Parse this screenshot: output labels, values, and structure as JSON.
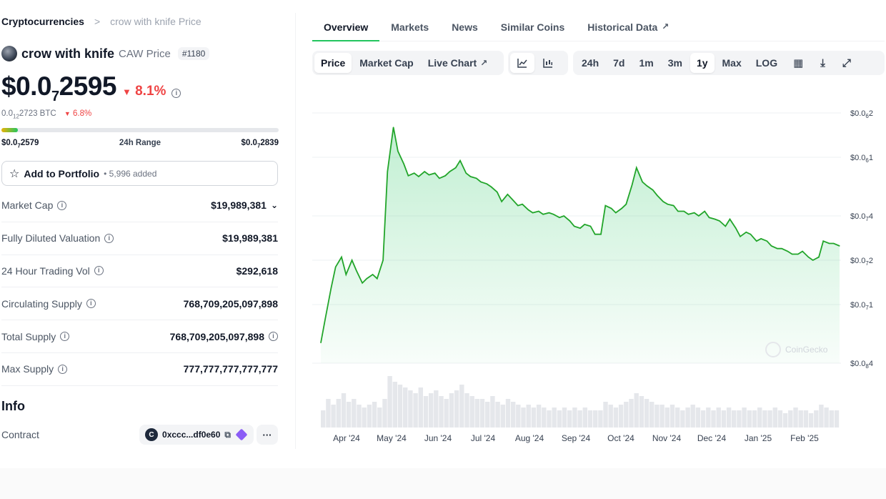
{
  "breadcrumb": {
    "root": "Cryptocurrencies",
    "separator": ">",
    "current": "crow with knife Price"
  },
  "coin": {
    "name": "crow with knife",
    "symbol_label": "CAW Price",
    "rank": "#1180",
    "price_prefix": "$0.0",
    "price_zeros": "7",
    "price_digits": "2595",
    "change_24h": "8.1%",
    "btc_prefix": "0.0",
    "btc_zeros": "12",
    "btc_digits": "2723 BTC",
    "btc_change": "6.8%"
  },
  "range": {
    "low_prefix": "$0.0",
    "low_zeros": "7",
    "low_digits": "2579",
    "label": "24h Range",
    "high_prefix": "$0.0",
    "high_zeros": "7",
    "high_digits": "2839",
    "position_fraction": 0.06
  },
  "portfolio": {
    "label": "Add to Portfolio",
    "count": "• 5,996 added"
  },
  "stats": [
    {
      "label": "Market Cap",
      "value": "$19,989,381",
      "expand": true,
      "value_info": false
    },
    {
      "label": "Fully Diluted Valuation",
      "value": "$19,989,381",
      "expand": false,
      "value_info": false
    },
    {
      "label": "24 Hour Trading Vol",
      "value": "$292,618",
      "expand": false,
      "value_info": false
    },
    {
      "label": "Circulating Supply",
      "value": "768,709,205,097,898",
      "expand": false,
      "value_info": false
    },
    {
      "label": "Total Supply",
      "value": "768,709,205,097,898",
      "expand": false,
      "value_info": true
    },
    {
      "label": "Max Supply",
      "value": "777,777,777,777,777",
      "expand": false,
      "value_info": false
    }
  ],
  "info": {
    "heading": "Info",
    "contract_label": "Contract",
    "contract_address": "0xccc...df0e60",
    "contract_logo": "C",
    "more": "···"
  },
  "tabs": [
    {
      "label": "Overview",
      "active": true,
      "external": false
    },
    {
      "label": "Markets",
      "active": false,
      "external": false
    },
    {
      "label": "News",
      "active": false,
      "external": false
    },
    {
      "label": "Similar Coins",
      "active": false,
      "external": false
    },
    {
      "label": "Historical Data",
      "active": false,
      "external": true
    }
  ],
  "toolbar": {
    "chart_types": [
      {
        "label": "Price",
        "active": true,
        "external": false
      },
      {
        "label": "Market Cap",
        "active": false,
        "external": false
      },
      {
        "label": "Live Chart",
        "active": false,
        "external": true
      }
    ],
    "view_icons": [
      "line-chart-icon",
      "candlestick-icon"
    ],
    "ranges": [
      {
        "label": "24h",
        "active": false
      },
      {
        "label": "7d",
        "active": false
      },
      {
        "label": "1m",
        "active": false
      },
      {
        "label": "3m",
        "active": false
      },
      {
        "label": "1y",
        "active": true
      },
      {
        "label": "Max",
        "active": false
      },
      {
        "label": "LOG",
        "active": false
      }
    ],
    "tool_icons": [
      "calendar-icon",
      "download-icon",
      "expand-icon"
    ]
  },
  "colors": {
    "accent": "#22c55e",
    "negative": "#ef4444",
    "line": "#22a52a"
  },
  "chart_data": {
    "type": "area",
    "title": "",
    "watermark": "CoinGecko",
    "scale": "log",
    "y_ticks": [
      {
        "value": 4e-09,
        "prefix": "$0.0",
        "zeros": "8",
        "digits": "4"
      },
      {
        "value": 1e-08,
        "prefix": "$0.0",
        "zeros": "7",
        "digits": "1"
      },
      {
        "value": 2e-08,
        "prefix": "$0.0",
        "zeros": "7",
        "digits": "2"
      },
      {
        "value": 4e-08,
        "prefix": "$0.0",
        "zeros": "7",
        "digits": "4"
      },
      {
        "value": 1e-07,
        "prefix": "$0.0",
        "zeros": "6",
        "digits": "1"
      },
      {
        "value": 2e-07,
        "prefix": "$0.0",
        "zeros": "6",
        "digits": "2"
      }
    ],
    "ylim": [
      4e-09,
      2e-07
    ],
    "x_ticks": [
      "Apr '24",
      "May '24",
      "Jun '24",
      "Jul '24",
      "Aug '24",
      "Sep '24",
      "Oct '24",
      "Nov '24",
      "Dec '24",
      "Jan '25",
      "Feb '25"
    ],
    "x": [
      0,
      3,
      7,
      10,
      14,
      17,
      21,
      24,
      28,
      31,
      35,
      38,
      42,
      45,
      49,
      52,
      56,
      59,
      63,
      66,
      70,
      73,
      77,
      80,
      84,
      87,
      91,
      94,
      98,
      101,
      105,
      108,
      112,
      115,
      119,
      122,
      126,
      129,
      133,
      136,
      140,
      143,
      147,
      150,
      154,
      157,
      161,
      164,
      168,
      171,
      175,
      178,
      182,
      185,
      189,
      192,
      196,
      199,
      203,
      206,
      210,
      213,
      217,
      220,
      224,
      227,
      231,
      234,
      238,
      241,
      245,
      248,
      252,
      255,
      259,
      262,
      266,
      269,
      273,
      276,
      280,
      283,
      287,
      290,
      294,
      297,
      301,
      304,
      308,
      311,
      315,
      318,
      322,
      325,
      329,
      332,
      336,
      339,
      343,
      346,
      350
    ],
    "x_unit": "days since Mar 13 '24",
    "values": [
      5.5e-09,
      8e-09,
      1.3e-08,
      1.8e-08,
      2.1e-08,
      1.6e-08,
      2e-08,
      1.7e-08,
      1.4e-08,
      1.5e-08,
      1.6e-08,
      1.5e-08,
      2e-08,
      8e-08,
      1.6e-07,
      1.1e-07,
      9e-08,
      7.5e-08,
      7.8e-08,
      7.4e-08,
      8e-08,
      7.6e-08,
      7.8e-08,
      7.2e-08,
      7.5e-08,
      8e-08,
      8.5e-08,
      9.5e-08,
      7.8e-08,
      7.4e-08,
      7.2e-08,
      6.8e-08,
      6.6e-08,
      6.3e-08,
      5.8e-08,
      5e-08,
      5.6e-08,
      5.2e-08,
      4.7e-08,
      4.8e-08,
      4.4e-08,
      4.2e-08,
      4.3e-08,
      4.1e-08,
      4.2e-08,
      4.1e-08,
      3.9e-08,
      4e-08,
      3.7e-08,
      3.4e-08,
      3.3e-08,
      3.5e-08,
      3.4e-08,
      3e-08,
      3e-08,
      4.7e-08,
      4.5e-08,
      4.2e-08,
      4.5e-08,
      4.8e-08,
      6.5e-08,
      8.5e-08,
      6.8e-08,
      6.4e-08,
      6e-08,
      5.5e-08,
      5e-08,
      4.8e-08,
      4.7e-08,
      4.3e-08,
      4.3e-08,
      4.1e-08,
      4.2e-08,
      4e-08,
      4.3e-08,
      3.9e-08,
      3.8e-08,
      3.7e-08,
      3.4e-08,
      3.8e-08,
      3.3e-08,
      2.9e-08,
      3.1e-08,
      3e-08,
      2.7e-08,
      2.8e-08,
      2.7e-08,
      2.5e-08,
      2.4e-08,
      2.4e-08,
      2.3e-08,
      2.2e-08,
      2.2e-08,
      2.3e-08,
      2.1e-08,
      2e-08,
      2.1e-08,
      2.7e-08,
      2.6e-08,
      2.6e-08,
      2.5e-08
    ],
    "volume": [
      0.3,
      0.5,
      0.4,
      0.5,
      0.6,
      0.45,
      0.5,
      0.4,
      0.35,
      0.4,
      0.45,
      0.35,
      0.5,
      0.9,
      0.8,
      0.75,
      0.7,
      0.65,
      0.6,
      0.7,
      0.55,
      0.6,
      0.65,
      0.55,
      0.5,
      0.6,
      0.65,
      0.75,
      0.6,
      0.55,
      0.5,
      0.5,
      0.45,
      0.55,
      0.45,
      0.4,
      0.5,
      0.45,
      0.4,
      0.35,
      0.4,
      0.35,
      0.4,
      0.35,
      0.3,
      0.35,
      0.3,
      0.35,
      0.3,
      0.35,
      0.3,
      0.35,
      0.3,
      0.3,
      0.3,
      0.45,
      0.4,
      0.35,
      0.4,
      0.45,
      0.5,
      0.6,
      0.55,
      0.5,
      0.45,
      0.4,
      0.4,
      0.35,
      0.4,
      0.35,
      0.3,
      0.35,
      0.4,
      0.35,
      0.3,
      0.35,
      0.3,
      0.35,
      0.3,
      0.35,
      0.3,
      0.3,
      0.35,
      0.3,
      0.3,
      0.35,
      0.3,
      0.3,
      0.35,
      0.3,
      0.25,
      0.3,
      0.35,
      0.3,
      0.3,
      0.25,
      0.3,
      0.4,
      0.35,
      0.3,
      0.3
    ]
  }
}
